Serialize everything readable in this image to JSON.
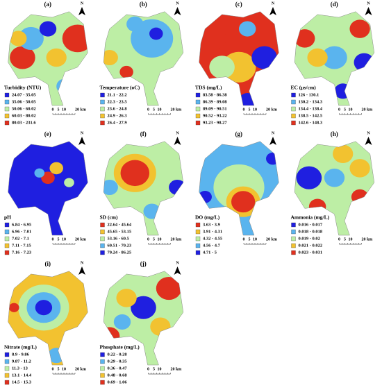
{
  "north": "N",
  "scale_bar": [
    "0",
    "5",
    "10",
    "20 km"
  ],
  "panels": [
    {
      "label": "(a)",
      "legend_title": "Turbidity (NTU)",
      "classes": [
        "24.07 - 35.05",
        "35.06 - 50.05",
        "50.06 - 60.02",
        "60.03 - 80.02",
        "80.03 - 231.6"
      ],
      "colors": [
        "#1f1fe0",
        "#5ab4ee",
        "#bdeea5",
        "#f2c230",
        "#e0301e"
      ]
    },
    {
      "label": "(b)",
      "legend_title": "Temperature (oC)",
      "classes": [
        "21.1 - 22.2",
        "22.3 - 23.5",
        "23.6 - 24.8",
        "24.9 - 26.3",
        "26.4 - 27.9"
      ],
      "colors": [
        "#1f1fe0",
        "#5ab4ee",
        "#bdeea5",
        "#f2c230",
        "#e0301e"
      ]
    },
    {
      "label": "(c)",
      "legend_title": "TDS (mg/L)",
      "classes": [
        "83.58 - 86.38",
        "86.39 - 89.08",
        "89.09 - 90.51",
        "90.52 - 93.22",
        "93.23 - 98.27"
      ],
      "colors": [
        "#1f1fe0",
        "#5ab4ee",
        "#bdeea5",
        "#f2c230",
        "#e0301e"
      ]
    },
    {
      "label": "(d)",
      "legend_title": "EC (µs/cm)",
      "classes": [
        "126 - 130.1",
        "130.2 - 134.3",
        "134.4 - 138.4",
        "138.5 - 142.5",
        "142.6 - 148.3"
      ],
      "colors": [
        "#1f1fe0",
        "#5ab4ee",
        "#bdeea5",
        "#f2c230",
        "#e0301e"
      ]
    },
    {
      "label": "(e)",
      "legend_title": "pH",
      "classes": [
        "6.84 - 6.95",
        "6.96 - 7.01",
        "7.02 - 7.1",
        "7.11 - 7.15",
        "7.16 - 7.23"
      ],
      "colors": [
        "#1f1fe0",
        "#5ab4ee",
        "#bdeea5",
        "#f2c230",
        "#e0301e"
      ]
    },
    {
      "label": "(f)",
      "legend_title": "SD (cm)",
      "classes": [
        "22.64 - 45.64",
        "45.65 - 53.15",
        "53.16 - 60.5",
        "60.51 - 70.23",
        "70.24 - 86.25"
      ],
      "colors": [
        "#e0301e",
        "#f2c230",
        "#bdeea5",
        "#5ab4ee",
        "#1f1fe0"
      ]
    },
    {
      "label": "(g)",
      "legend_title": "DO (mg/L)",
      "classes": [
        "3.63 - 3.9",
        "3.91 - 4.31",
        "4.32 - 4.55",
        "4.56 - 4.7",
        "4.71 - 5"
      ],
      "colors": [
        "#e0301e",
        "#f2c230",
        "#bdeea5",
        "#5ab4ee",
        "#1f1fe0"
      ]
    },
    {
      "label": "(h)",
      "legend_title": "Ammonia (mg/L)",
      "classes": [
        "0.016 - 0.017",
        "0.018 - 0.018",
        "0.019 - 0.02",
        "0.021 - 0.022",
        "0.023 - 0.031"
      ],
      "colors": [
        "#1f1fe0",
        "#5ab4ee",
        "#bdeea5",
        "#f2c230",
        "#e0301e"
      ]
    },
    {
      "label": "(i)",
      "legend_title": "Nitrate (mg/L)",
      "classes": [
        "8.9 - 9.86",
        "9.87 - 11.2",
        "11.3 - 13",
        "13.1 - 14.4",
        "14.5 - 15.3"
      ],
      "colors": [
        "#1f1fe0",
        "#5ab4ee",
        "#bdeea5",
        "#f2c230",
        "#e0301e"
      ]
    },
    {
      "label": "(j)",
      "legend_title": "Phosphate (mg/L)",
      "classes": [
        "0.22 - 0.28",
        "0.29 - 0.35",
        "0.36 - 0.47",
        "0.48 - 0.68",
        "0.69 - 1.06"
      ],
      "colors": [
        "#1f1fe0",
        "#5ab4ee",
        "#bdeea5",
        "#f2c230",
        "#e0301e"
      ]
    }
  ]
}
